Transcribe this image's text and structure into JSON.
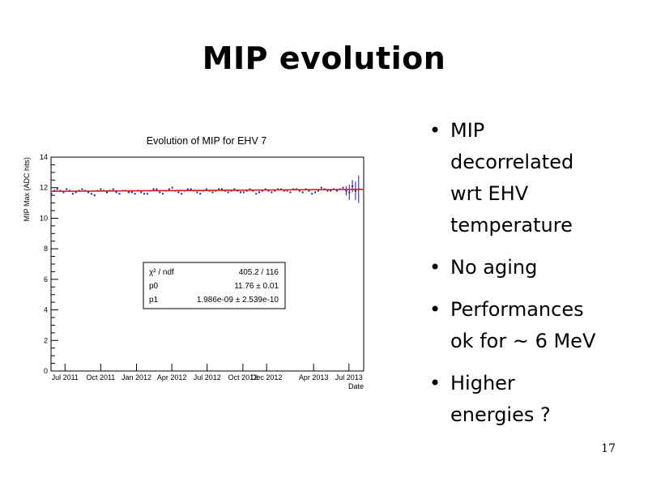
{
  "slide": {
    "title": "MIP evolution",
    "page_number": "17",
    "bullets": [
      [
        "MIP",
        "decorrelated",
        "wrt EHV",
        "temperature"
      ],
      [
        "No aging"
      ],
      [
        "Performances",
        "ok for ~ 6 MeV"
      ],
      [
        "Higher",
        "energies ?"
      ]
    ],
    "bullet_glyph": "•"
  },
  "fit_box": {
    "rows": [
      {
        "label": "χ² / ndf",
        "value": "405.2 / 116"
      },
      {
        "label": "p0",
        "value": "11.76 ± 0.01"
      },
      {
        "label": "p1",
        "value": "1.986e-09 ± 2.539e-10"
      }
    ]
  },
  "chart_data": {
    "type": "scatter",
    "title": "Evolution of MIP for EHV 7",
    "xlabel": "Date",
    "ylabel": "MIP Max (ADC hits)",
    "x_tick_labels": [
      "Jul 2011",
      "Oct 2011",
      "Jan 2012",
      "Apr 2012",
      "Jul 2012",
      "Oct 2012",
      "Dec 2012",
      "Apr 2013",
      "Jul 2013"
    ],
    "x_ticks": [
      "2011-07-01",
      "2011-10-01",
      "2012-01-01",
      "2012-04-01",
      "2012-07-01",
      "2012-10-01",
      "2012-12-01",
      "2013-04-01",
      "2013-07-01"
    ],
    "xlim": [
      "2011-05-26",
      "2013-08-08"
    ],
    "ylim": [
      0,
      14
    ],
    "y_ticks": [
      0,
      2,
      4,
      6,
      8,
      10,
      12,
      14
    ],
    "grid": false,
    "series": [
      {
        "kind": "points",
        "color": "#1a1a9c",
        "x": [
          "2011-05-27",
          "2011-06-04",
          "2011-06-11",
          "2011-06-19",
          "2011-06-27",
          "2011-07-05",
          "2011-07-13",
          "2011-07-21",
          "2011-07-29",
          "2011-08-06",
          "2011-08-14",
          "2011-08-22",
          "2011-08-30",
          "2011-09-07",
          "2011-09-15",
          "2011-09-23",
          "2011-10-01",
          "2011-10-09",
          "2011-10-17",
          "2011-10-25",
          "2011-11-02",
          "2011-11-10",
          "2011-11-18",
          "2011-11-26",
          "2011-12-04",
          "2011-12-12",
          "2011-12-20",
          "2011-12-28",
          "2012-01-05",
          "2012-01-13",
          "2012-01-21",
          "2012-01-29",
          "2012-02-06",
          "2012-02-14",
          "2012-02-22",
          "2012-03-01",
          "2012-03-09",
          "2012-03-17",
          "2012-03-25",
          "2012-04-02",
          "2012-04-10",
          "2012-04-18",
          "2012-04-26",
          "2012-05-04",
          "2012-05-12",
          "2012-05-20",
          "2012-05-28",
          "2012-06-05",
          "2012-06-13",
          "2012-06-21",
          "2012-06-29",
          "2012-07-07",
          "2012-07-15",
          "2012-07-23",
          "2012-07-31",
          "2012-08-08",
          "2012-08-16",
          "2012-08-24",
          "2012-09-01",
          "2012-09-09",
          "2012-09-17",
          "2012-09-25",
          "2012-10-03",
          "2012-10-11",
          "2012-10-19",
          "2012-10-27",
          "2012-11-04",
          "2012-11-12",
          "2012-11-20",
          "2012-11-28",
          "2012-12-06",
          "2012-12-14",
          "2012-12-22",
          "2012-12-30",
          "2013-01-07",
          "2013-01-15",
          "2013-01-23",
          "2013-01-31",
          "2013-02-08",
          "2013-02-16",
          "2013-02-24",
          "2013-03-04",
          "2013-03-12",
          "2013-03-20",
          "2013-03-28",
          "2013-04-05",
          "2013-04-13",
          "2013-04-21",
          "2013-04-29",
          "2013-05-07",
          "2013-05-15",
          "2013-05-23",
          "2013-05-31",
          "2013-06-08",
          "2013-06-16",
          "2013-06-24",
          "2013-07-02",
          "2013-07-10",
          "2013-07-18",
          "2013-07-26"
        ],
        "y": [
          11.6,
          11.8,
          11.9,
          11.8,
          11.7,
          11.9,
          11.8,
          11.6,
          11.7,
          11.8,
          11.9,
          11.8,
          11.7,
          11.6,
          11.5,
          11.8,
          11.9,
          11.8,
          11.7,
          11.8,
          11.9,
          11.7,
          11.6,
          11.8,
          11.8,
          11.7,
          11.7,
          11.6,
          11.8,
          11.7,
          11.6,
          11.6,
          11.8,
          11.9,
          11.9,
          11.7,
          11.6,
          11.8,
          11.9,
          12.0,
          11.8,
          11.7,
          11.6,
          11.8,
          11.9,
          11.9,
          11.8,
          11.7,
          11.6,
          11.8,
          11.9,
          11.8,
          11.7,
          11.8,
          11.9,
          11.9,
          11.8,
          11.7,
          11.8,
          11.9,
          11.8,
          11.7,
          11.7,
          11.8,
          11.9,
          11.8,
          11.6,
          11.7,
          11.8,
          11.9,
          11.8,
          11.7,
          11.8,
          11.9,
          11.9,
          11.8,
          11.8,
          11.7,
          11.9,
          11.9,
          11.8,
          11.7,
          11.9,
          11.8,
          11.6,
          11.7,
          11.8,
          12.0,
          11.9,
          11.8,
          11.8,
          11.9,
          11.8,
          11.9,
          12.0,
          11.8,
          11.7,
          12.1,
          11.8,
          11.9
        ],
        "yerr": [
          0.05,
          0.05,
          0.05,
          0.05,
          0.05,
          0.05,
          0.05,
          0.05,
          0.05,
          0.05,
          0.05,
          0.05,
          0.05,
          0.05,
          0.05,
          0.05,
          0.05,
          0.05,
          0.05,
          0.05,
          0.05,
          0.05,
          0.05,
          0.05,
          0.05,
          0.05,
          0.05,
          0.05,
          0.05,
          0.05,
          0.05,
          0.05,
          0.05,
          0.05,
          0.05,
          0.05,
          0.05,
          0.05,
          0.05,
          0.05,
          0.05,
          0.05,
          0.05,
          0.05,
          0.05,
          0.05,
          0.05,
          0.05,
          0.05,
          0.05,
          0.05,
          0.05,
          0.05,
          0.05,
          0.05,
          0.05,
          0.05,
          0.05,
          0.05,
          0.05,
          0.05,
          0.05,
          0.05,
          0.05,
          0.05,
          0.05,
          0.05,
          0.05,
          0.05,
          0.05,
          0.05,
          0.05,
          0.05,
          0.05,
          0.05,
          0.05,
          0.05,
          0.05,
          0.05,
          0.05,
          0.05,
          0.05,
          0.05,
          0.05,
          0.05,
          0.05,
          0.05,
          0.05,
          0.05,
          0.05,
          0.05,
          0.05,
          0.05,
          0.05,
          0.05,
          0.3,
          0.5,
          0.4,
          0.6,
          0.9
        ]
      },
      {
        "kind": "fit-line",
        "color": "#e01818",
        "x": [
          "2011-05-26",
          "2013-08-08"
        ],
        "y": [
          11.76,
          11.89
        ]
      }
    ]
  }
}
